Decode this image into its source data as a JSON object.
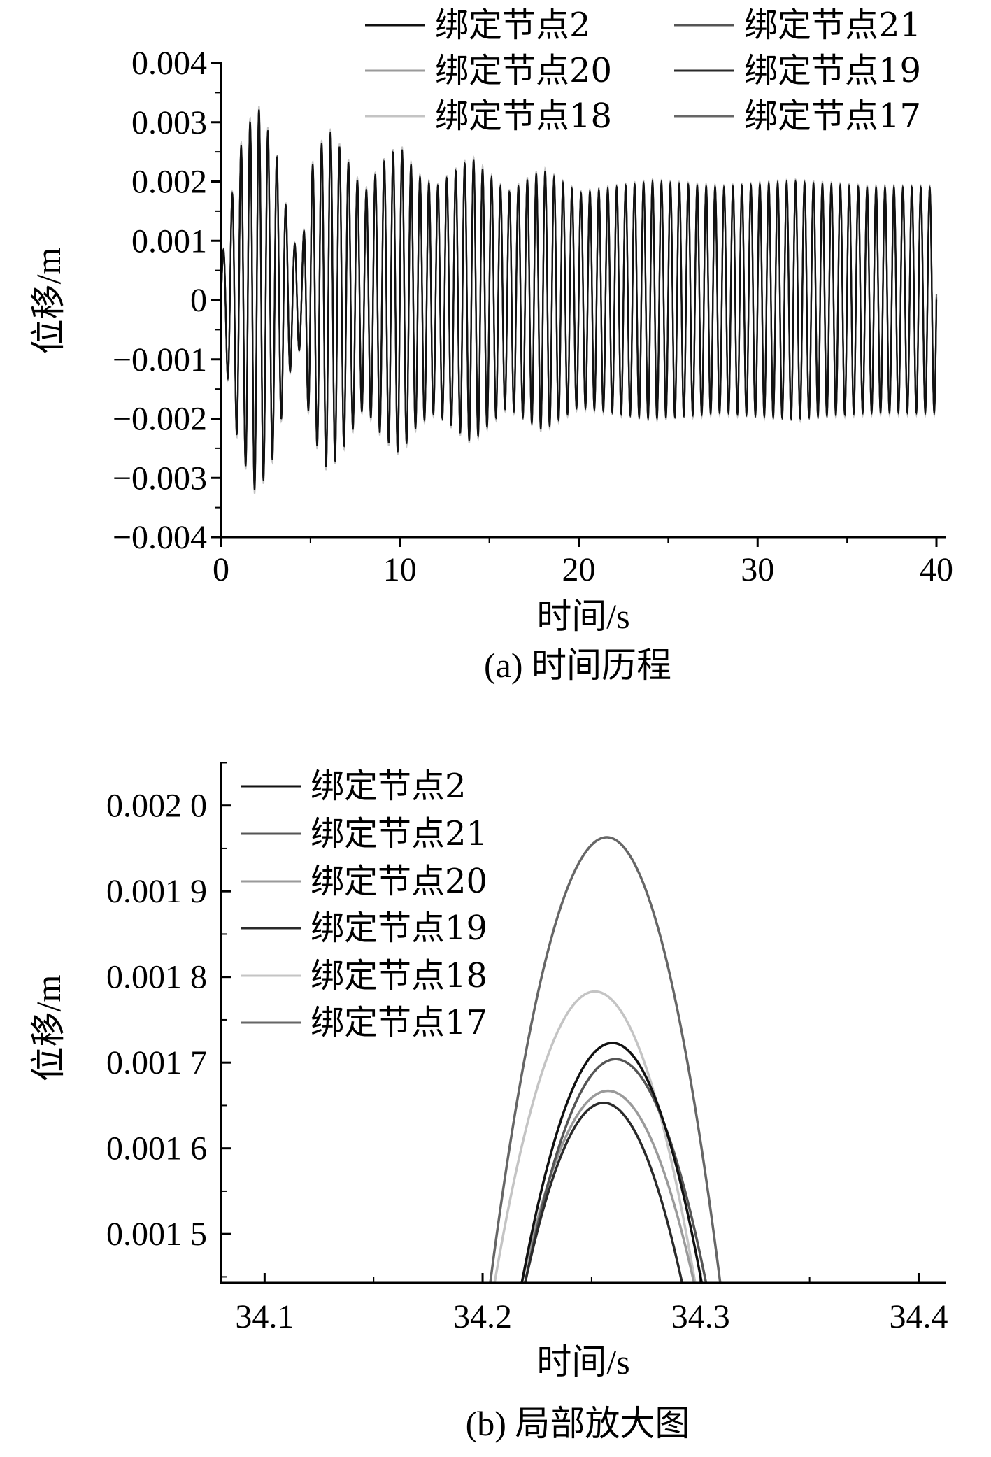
{
  "chart_data": [
    {
      "type": "line",
      "xlabel": "时间/s",
      "ylabel": "位移/m",
      "caption": "(a) 时间历程",
      "xlim": [
        0,
        40
      ],
      "ylim": [
        -0.004,
        0.004
      ],
      "xticks": [
        "0",
        "10",
        "20",
        "30",
        "40"
      ],
      "yticks": [
        "0.004",
        "0.003",
        "0.002",
        "0.001",
        "0",
        "−0.001",
        "−0.002",
        "−0.003",
        "−0.004"
      ],
      "legend_position": "top, two columns",
      "series": [
        {
          "name": "绑定节点2",
          "color": "#111111"
        },
        {
          "name": "绑定节点21",
          "color": "#555555"
        },
        {
          "name": "绑定节点20",
          "color": "#9a9a9a"
        },
        {
          "name": "绑定节点19",
          "color": "#2a2a2a"
        },
        {
          "name": "绑定节点18",
          "color": "#c4c4c4"
        },
        {
          "name": "绑定节点17",
          "color": "#666666"
        }
      ],
      "signal": {
        "period_s": 0.5,
        "envelope": [
          {
            "t": 0,
            "amp": 0.0006
          },
          {
            "t": 1,
            "amp": 0.0025
          },
          {
            "t": 2,
            "amp": 0.0033
          },
          {
            "t": 3,
            "amp": 0.0026
          },
          {
            "t": 4,
            "amp": 0.001
          },
          {
            "t": 4.5,
            "amp": 0.0008
          },
          {
            "t": 5,
            "amp": 0.0022
          },
          {
            "t": 6,
            "amp": 0.0029
          },
          {
            "t": 7,
            "amp": 0.0024
          },
          {
            "t": 8,
            "amp": 0.0018
          },
          {
            "t": 9,
            "amp": 0.0023
          },
          {
            "t": 10,
            "amp": 0.0026
          },
          {
            "t": 11,
            "amp": 0.0021
          },
          {
            "t": 12,
            "amp": 0.0019
          },
          {
            "t": 14,
            "amp": 0.0024
          },
          {
            "t": 16,
            "amp": 0.0018
          },
          {
            "t": 18,
            "amp": 0.0022
          },
          {
            "t": 20,
            "amp": 0.0018
          },
          {
            "t": 24,
            "amp": 0.002
          },
          {
            "t": 28,
            "amp": 0.0019
          },
          {
            "t": 32,
            "amp": 0.002
          },
          {
            "t": 36,
            "amp": 0.0019
          },
          {
            "t": 40,
            "amp": 0.0019
          }
        ]
      }
    },
    {
      "type": "line",
      "xlabel": "时间/s",
      "ylabel": "位移/m",
      "caption": "(b) 局部放大图",
      "xlim": [
        34.08,
        34.413
      ],
      "ylim": [
        0.001443,
        0.002052
      ],
      "xticks": [
        {
          "value": 34.1,
          "label": "34.1"
        },
        {
          "value": 34.2,
          "label": "34.2"
        },
        {
          "value": 34.3,
          "label": "34.3"
        },
        {
          "value": 34.4,
          "label": "34.4"
        }
      ],
      "yticks": [
        {
          "value": 0.002,
          "label": "0.002 0"
        },
        {
          "value": 0.0019,
          "label": "0.001 9"
        },
        {
          "value": 0.0018,
          "label": "0.001 8"
        },
        {
          "value": 0.0017,
          "label": "0.001 7"
        },
        {
          "value": 0.0016,
          "label": "0.001 6"
        },
        {
          "value": 0.0015,
          "label": "0.001 5"
        }
      ],
      "legend_position": "top-left",
      "series": [
        {
          "name": "绑定节点2",
          "color": "#111111",
          "peak_t": 34.2595,
          "peak": 0.001723,
          "x_at_floor": [
            34.218,
            34.3005
          ]
        },
        {
          "name": "绑定节点21",
          "color": "#555555",
          "peak_t": 34.261,
          "peak": 0.001704,
          "x_at_floor": [
            34.2195,
            34.3025
          ]
        },
        {
          "name": "绑定节点20",
          "color": "#9a9a9a",
          "peak_t": 34.2575,
          "peak": 0.001667,
          "x_at_floor": [
            34.218,
            34.297
          ]
        },
        {
          "name": "绑定节点19",
          "color": "#2a2a2a",
          "peak_t": 34.2555,
          "peak": 0.001653,
          "x_at_floor": [
            34.2195,
            34.2915
          ]
        },
        {
          "name": "绑定节点18",
          "color": "#c4c4c4",
          "peak_t": 34.2515,
          "peak": 0.001783,
          "x_at_floor": [
            34.2055,
            34.2975
          ]
        },
        {
          "name": "绑定节点17",
          "color": "#666666",
          "peak_t": 34.257,
          "peak": 0.001963,
          "x_at_floor": [
            34.2035,
            34.309
          ]
        }
      ]
    }
  ]
}
